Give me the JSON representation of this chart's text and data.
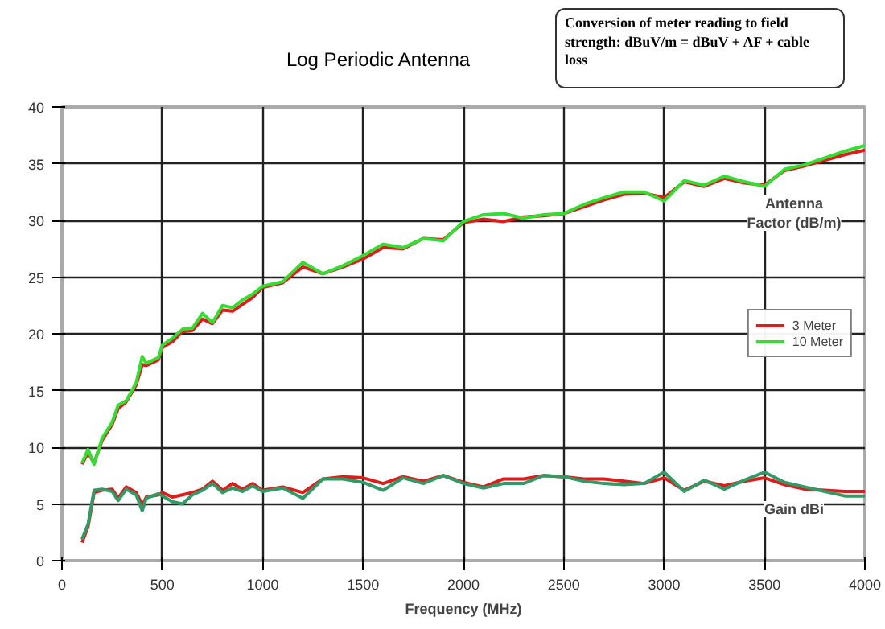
{
  "chart_data": {
    "type": "line",
    "title": "Log Periodic Antenna",
    "xlabel": "Frequency (MHz)",
    "x": [
      100,
      130,
      160,
      200,
      250,
      280,
      320,
      370,
      400,
      420,
      480,
      500,
      550,
      600,
      650,
      700,
      750,
      800,
      850,
      900,
      950,
      1000,
      1100,
      1200,
      1300,
      1400,
      1500,
      1600,
      1700,
      1800,
      1900,
      2000,
      2100,
      2200,
      2300,
      2400,
      2500,
      2600,
      2700,
      2800,
      2900,
      3000,
      3100,
      3200,
      3300,
      3400,
      3500,
      3600,
      3700,
      3800,
      3900,
      4000
    ],
    "series": [
      {
        "name": "3 Meter",
        "color": "#e01b1b",
        "values": [
          8.5,
          9.5,
          8.6,
          10.6,
          12,
          13.4,
          14,
          15.5,
          17.3,
          17.2,
          17.7,
          18.8,
          19.3,
          20.2,
          20.3,
          21.3,
          20.9,
          22.1,
          22,
          22.6,
          23.2,
          24.1,
          24.5,
          25.9,
          25.3,
          25.9,
          26.6,
          27.6,
          27.5,
          28.4,
          28.3,
          29.8,
          30.1,
          29.9,
          30.3,
          30.4,
          30.6,
          31.2,
          31.8,
          32.3,
          32.4,
          32,
          33.4,
          33,
          33.7,
          33.3,
          33.1,
          34.4,
          34.8,
          35.3,
          35.8,
          36.2
        ]
      },
      {
        "name": "10 Meter",
        "color": "#33dd33",
        "values": [
          8.6,
          9.8,
          8.5,
          10.8,
          12.2,
          13.7,
          14.1,
          15.7,
          18,
          17.4,
          17.9,
          19,
          19.6,
          20.4,
          20.5,
          21.8,
          21,
          22.5,
          22.3,
          23,
          23.5,
          24.2,
          24.6,
          26.3,
          25.3,
          26,
          26.9,
          27.9,
          27.6,
          28.4,
          28.2,
          29.9,
          30.5,
          30.6,
          30.2,
          30.5,
          30.6,
          31.4,
          32,
          32.5,
          32.5,
          31.7,
          33.5,
          33.1,
          33.9,
          33.4,
          33,
          34.5,
          34.9,
          35.5,
          36.1,
          36.6
        ]
      },
      {
        "color": "#e01b1b",
        "values": [
          1.6,
          3,
          6,
          6.2,
          6.3,
          5.5,
          6.5,
          6,
          4.9,
          5.6,
          5.8,
          6,
          5.6,
          5.8,
          6,
          6.3,
          7,
          6.2,
          6.8,
          6.3,
          6.8,
          6.2,
          6.5,
          6,
          7.2,
          7.4,
          7.3,
          6.8,
          7.4,
          7,
          7.5,
          6.9,
          6.5,
          7.2,
          7.2,
          7.5,
          7.4,
          7.2,
          7.2,
          7,
          6.8,
          7.3,
          6.2,
          7,
          6.6,
          7,
          7.3,
          6.7,
          6.3,
          6.2,
          6.1,
          6.1
        ]
      },
      {
        "color": "#339966",
        "values": [
          1.9,
          3.2,
          6.2,
          6.3,
          6.1,
          5.3,
          6.3,
          5.8,
          4.4,
          5.5,
          5.9,
          5.7,
          5.2,
          5,
          5.8,
          6.2,
          6.8,
          6,
          6.4,
          6.1,
          6.6,
          6.1,
          6.4,
          5.5,
          7.2,
          7.2,
          6.9,
          6.2,
          7.3,
          6.8,
          7.5,
          6.8,
          6.4,
          6.8,
          6.8,
          7.5,
          7.4,
          7,
          6.8,
          6.7,
          6.8,
          7.8,
          6.1,
          7.1,
          6.3,
          7.1,
          7.8,
          6.9,
          6.5,
          6.1,
          5.7,
          5.7
        ]
      }
    ],
    "xlim": [
      0,
      4000
    ],
    "ylim": [
      0,
      40
    ],
    "xticks": [
      0,
      500,
      1000,
      1500,
      2000,
      2500,
      3000,
      3500,
      4000
    ],
    "yticks": [
      0,
      5,
      10,
      15,
      20,
      25,
      30,
      35,
      40
    ],
    "grid": true,
    "legend": "right",
    "marker": "none",
    "line_style": "solid",
    "annotations": [
      "Conversion of meter reading to field strength: dBuV/m = dBuV + AF + cable loss",
      "Antenna Factor (dB/m)",
      "Gain dBi"
    ]
  }
}
